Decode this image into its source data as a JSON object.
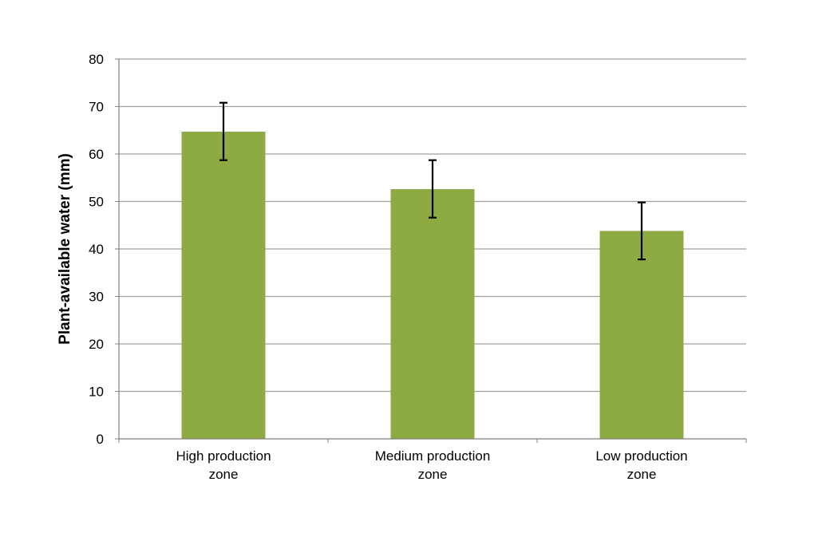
{
  "chart_data": {
    "type": "bar",
    "title": "",
    "xlabel": "",
    "ylabel": "Plant-available water (mm)",
    "ylim": [
      0,
      80
    ],
    "yticks": [
      0,
      10,
      20,
      30,
      40,
      50,
      60,
      70,
      80
    ],
    "grid": true,
    "legend": "none",
    "categories": [
      [
        "High production",
        "zone"
      ],
      [
        "Medium production",
        "zone"
      ],
      [
        "Low production",
        "zone"
      ]
    ],
    "values": [
      64.7,
      52.6,
      43.8
    ],
    "error_bars": [
      {
        "low": 58.7,
        "high": 70.8
      },
      {
        "low": 46.6,
        "high": 58.7
      },
      {
        "low": 37.8,
        "high": 49.8
      }
    ],
    "bar_color": "#8DAA43",
    "grid_color": "#A0A0A0",
    "error_bar_color": "#000000"
  }
}
